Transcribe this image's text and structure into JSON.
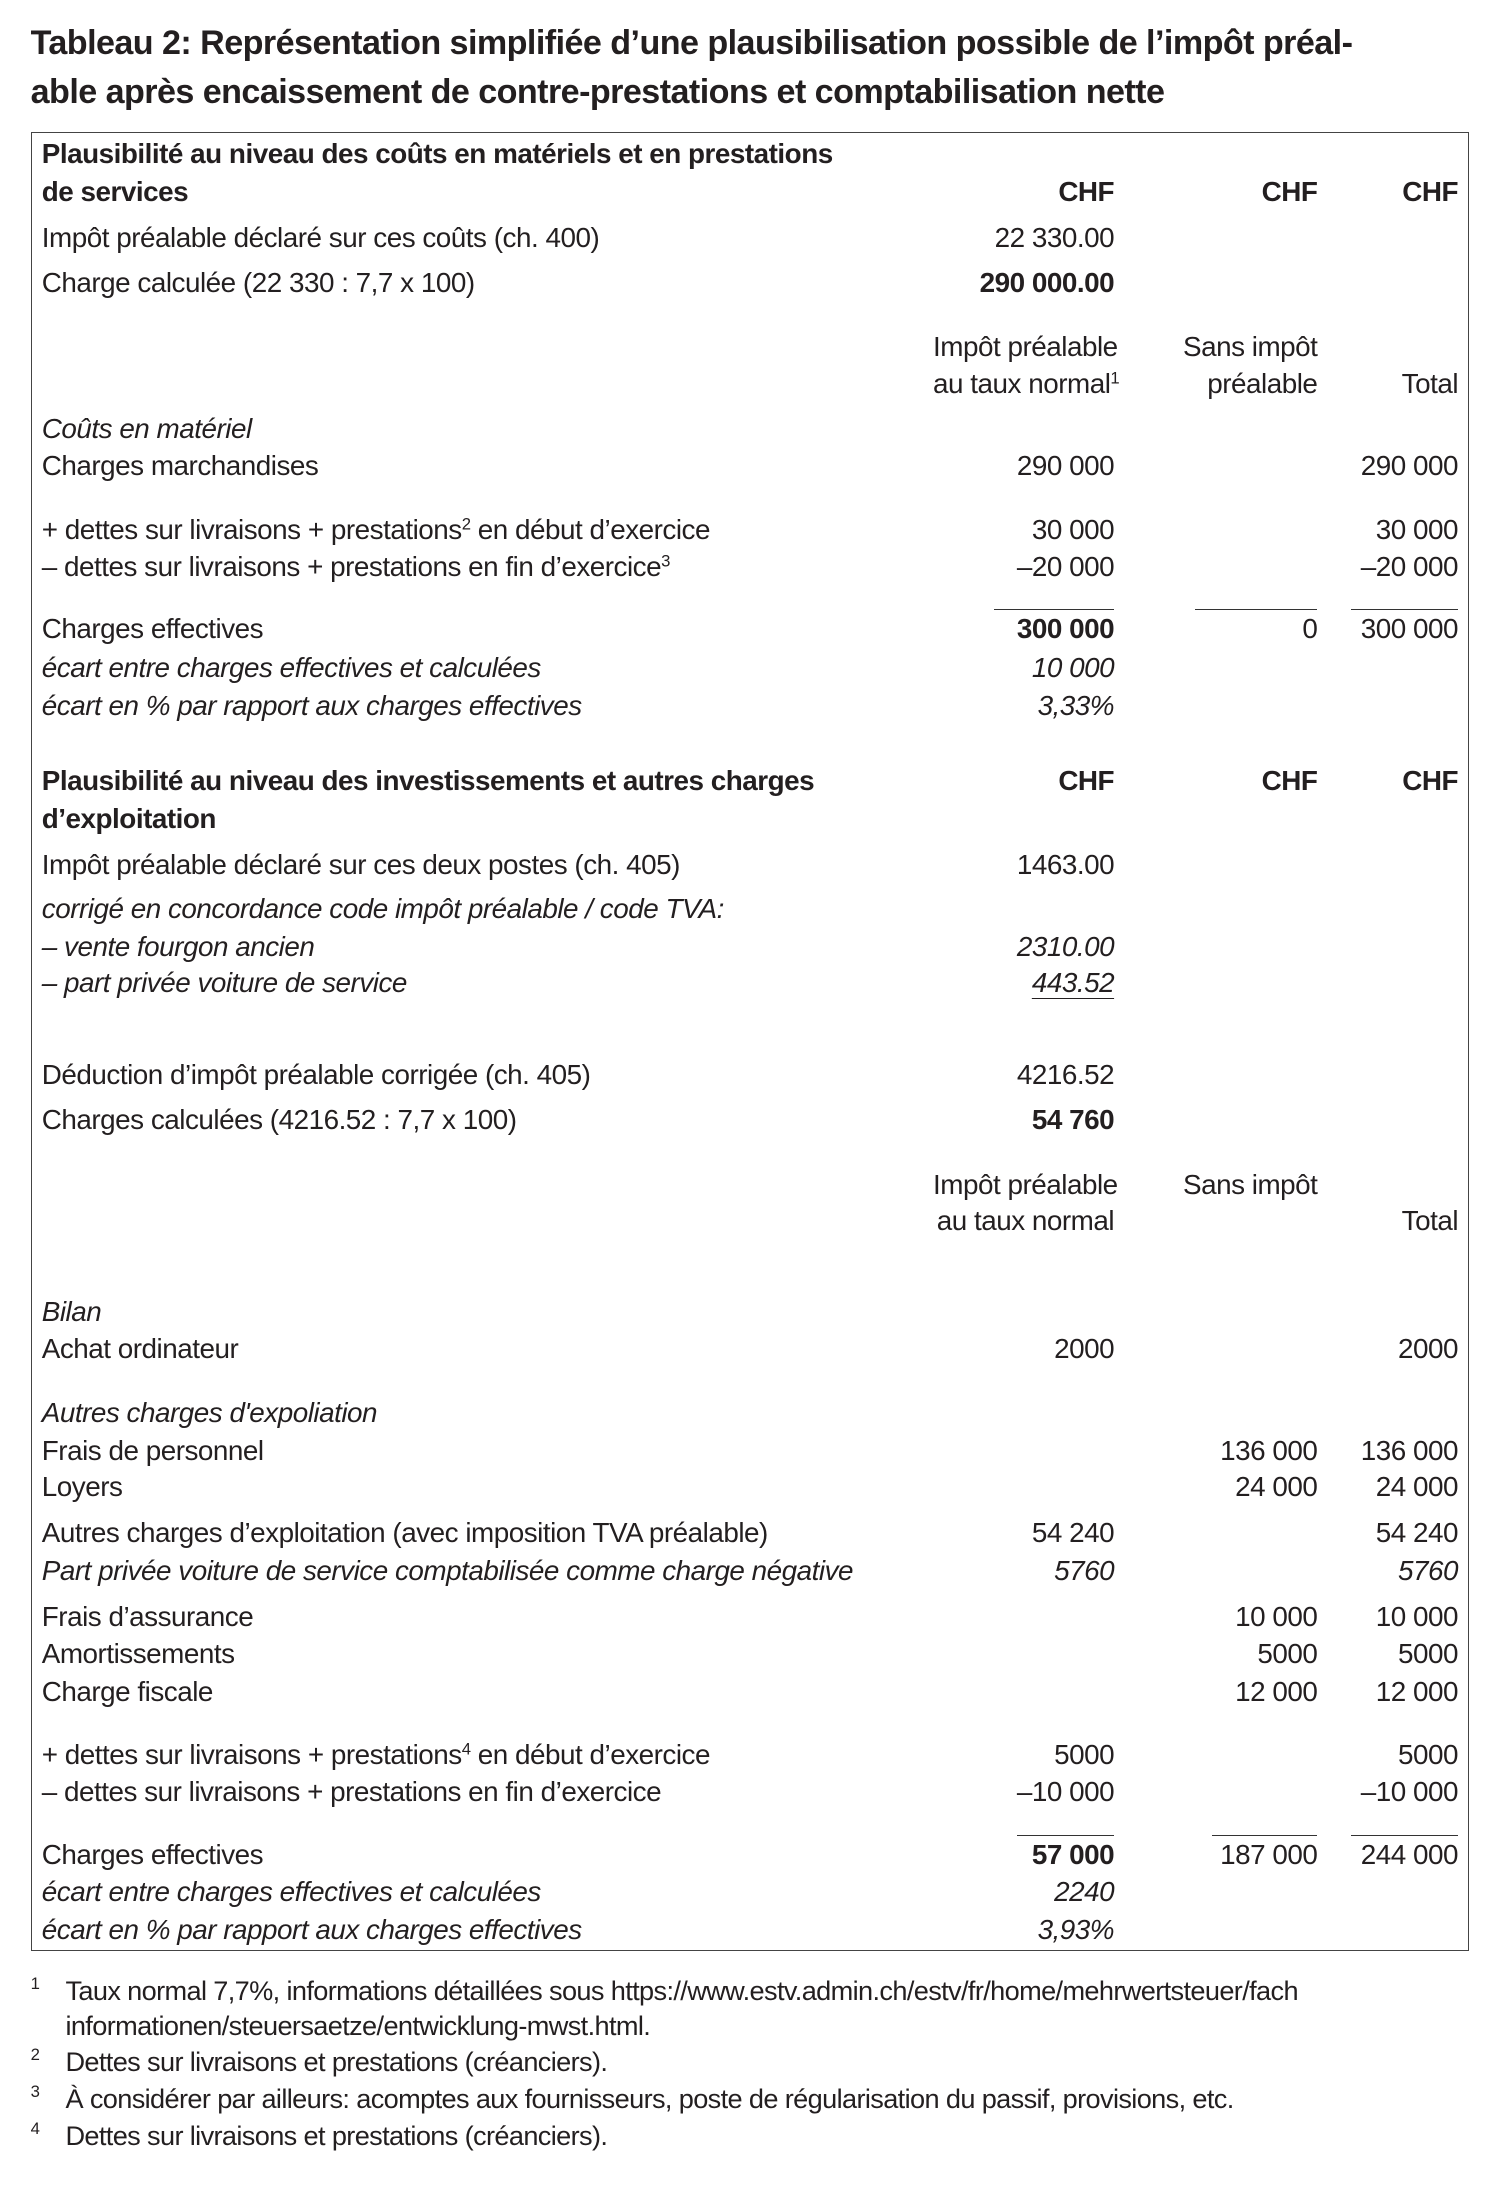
{
  "title": {
    "line1": "Tableau 2: Représentation simplifiée d’une plausibilisation possible de l’impôt préal-",
    "line2": "able après encaissement de contre-prestations et comptabilisation nette"
  },
  "rows": [
    {
      "label": "Plausibilité au niveau des coûts en matériels et en prestations",
      "label_em": "b",
      "cells": [
        "",
        "",
        ""
      ]
    },
    {
      "label": "de services",
      "label_em": "b",
      "cells": [
        "CHF",
        "CHF",
        "CHF"
      ],
      "cell_em": [
        "b",
        "b",
        "b"
      ]
    },
    {
      "label": "Impôt préalable déclaré sur ces coûts (ch. 400)",
      "cells": [
        "22 330.00",
        "",
        ""
      ]
    },
    {
      "label": "Charge calculée (22 330 : 7,7 x 100)",
      "cells": [
        "290 000.00",
        "",
        ""
      ],
      "cell_em": [
        "b",
        "",
        ""
      ]
    },
    {
      "label": "",
      "cells": [
        "Impôt préalable",
        "Sans impôt",
        ""
      ]
    },
    {
      "label": "",
      "cells": [
        "au taux normal",
        "préalable",
        "Total"
      ],
      "cell_sup": [
        "1",
        "",
        ""
      ]
    },
    {
      "label": "Coûts en matériel",
      "label_em": "i",
      "cells": [
        "",
        "",
        ""
      ]
    },
    {
      "label": "Charges marchandises",
      "cells": [
        "290 000",
        "",
        "290 000"
      ]
    },
    {
      "label": "+ dettes sur livraisons + prestations",
      "sup": "2",
      "label_rest": " en début d’exercice",
      "cells": [
        "30 000",
        "",
        "30 000"
      ]
    },
    {
      "label": "– dettes sur livraisons + prestations en fin d’exercice",
      "sup": "3",
      "cells": [
        "–20 000",
        "",
        "–20 000"
      ]
    },
    {
      "label": "Charges effectives",
      "cells": [
        "300 000",
        "0",
        "300 000"
      ],
      "cell_em": [
        "b",
        "",
        ""
      ]
    },
    {
      "label": "écart entre charges effectives et calculées",
      "label_em": "i",
      "cells": [
        "10 000",
        "",
        ""
      ],
      "cell_em": [
        "i",
        "",
        ""
      ]
    },
    {
      "label": "écart en % par rapport aux charges effectives",
      "label_em": "i",
      "cells": [
        "3,33%",
        "",
        ""
      ],
      "cell_em": [
        "i",
        "",
        ""
      ]
    },
    {
      "label": "Plausibilité au niveau des investissements et autres charges",
      "label_em": "b",
      "cells": [
        "CHF",
        "CHF",
        "CHF"
      ],
      "cell_em": [
        "b",
        "b",
        "b"
      ]
    },
    {
      "label": "d’exploitation",
      "label_em": "b",
      "cells": [
        "",
        "",
        ""
      ]
    },
    {
      "label": "Impôt préalable déclaré sur ces deux postes (ch. 405)",
      "cells": [
        "1463.00",
        "",
        ""
      ]
    },
    {
      "label": "corrigé en concordance code impôt préalable / code TVA:",
      "label_em": "i",
      "cells": [
        "",
        "",
        ""
      ]
    },
    {
      "label": "– vente fourgon ancien",
      "label_em": "i",
      "cells": [
        "2310.00",
        "",
        ""
      ],
      "cell_em": [
        "i",
        "",
        ""
      ]
    },
    {
      "label": "– part privée voiture de service",
      "label_em": "i",
      "cells": [
        "443.52",
        "",
        ""
      ],
      "cell_em": [
        "i ul",
        "",
        ""
      ]
    },
    {
      "label": "Déduction d’impôt préalable corrigée (ch. 405)",
      "cells": [
        "4216.52",
        "",
        ""
      ]
    },
    {
      "label": "Charges calculées (4216.52 : 7,7 x 100)",
      "cells": [
        "54 760",
        "",
        ""
      ],
      "cell_em": [
        "b",
        "",
        ""
      ]
    },
    {
      "label": "",
      "cells": [
        "Impôt préalable",
        "Sans impôt",
        ""
      ]
    },
    {
      "label": "",
      "cells": [
        "au taux normal",
        "",
        "Total"
      ]
    },
    {
      "label": "Bilan",
      "label_em": "i",
      "cells": [
        "",
        "",
        ""
      ]
    },
    {
      "label": "Achat ordinateur",
      "cells": [
        "2000",
        "",
        "2000"
      ]
    },
    {
      "label": "Autres charges d'expoliation",
      "label_em": "i",
      "cells": [
        "",
        "",
        ""
      ]
    },
    {
      "label": "Frais de personnel",
      "cells": [
        "",
        "136 000",
        "136 000"
      ]
    },
    {
      "label": "Loyers",
      "cells": [
        "",
        "24 000",
        "24 000"
      ]
    },
    {
      "label": "Autres charges d’exploitation (avec imposition TVA préalable)",
      "cells": [
        "54 240",
        "",
        "54 240"
      ]
    },
    {
      "label": "Part privée voiture de service comptabilisée comme charge négative",
      "label_em": "i",
      "cells": [
        "5760",
        "",
        "5760"
      ],
      "cell_em": [
        "i",
        "",
        "i"
      ]
    },
    {
      "label": "Frais d’assurance",
      "cells": [
        "",
        "10 000",
        "10 000"
      ]
    },
    {
      "label": "Amortissements",
      "cells": [
        "",
        "5000",
        "5000"
      ]
    },
    {
      "label": "Charge fiscale",
      "cells": [
        "",
        "12 000",
        "12 000"
      ]
    },
    {
      "label": "+ dettes sur livraisons + prestations",
      "sup": "4",
      "label_rest": " en début d’exercice",
      "cells": [
        "5000",
        "",
        "5000"
      ]
    },
    {
      "label": "– dettes sur livraisons + prestations en fin d’exercice",
      "cells": [
        "–10 000",
        "",
        "–10 000"
      ]
    },
    {
      "label": "Charges effectives",
      "cells": [
        "57 000",
        "187 000",
        "244 000"
      ],
      "cell_em": [
        "b",
        "",
        ""
      ]
    },
    {
      "label": "écart entre charges effectives et calculées",
      "label_em": "i",
      "cells": [
        "2240",
        "",
        ""
      ],
      "cell_em": [
        "i",
        "",
        ""
      ]
    },
    {
      "label": "écart en % par rapport aux charges effectives",
      "label_em": "i",
      "cells": [
        "3,93%",
        "",
        ""
      ],
      "cell_em": [
        "i",
        "",
        ""
      ]
    }
  ],
  "footnotes": [
    {
      "num": "1",
      "lines": [
        "Taux normal 7,7%, informations détaillées sous https://www.estv.admin.ch/estv/fr/home/mehrwertsteuer/fach",
        "informationen/steuersaetze/entwicklung-mwst.html."
      ]
    },
    {
      "num": "2",
      "lines": [
        "Dettes sur livraisons et prestations (créanciers)."
      ]
    },
    {
      "num": "3",
      "lines": [
        "À considérer par ailleurs: acomptes aux fournisseurs, poste de régularisation du passif, provisions, etc."
      ]
    },
    {
      "num": "4",
      "lines": [
        "Dettes sur livraisons et prestations (créanciers)."
      ]
    }
  ]
}
